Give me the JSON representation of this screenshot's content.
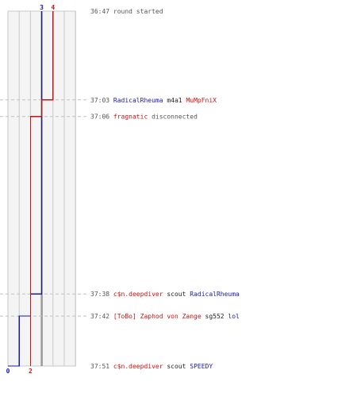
{
  "chart_data": {
    "type": "line",
    "title": "",
    "xlabel": "",
    "ylabel": "",
    "grid": true,
    "x_range": [
      0,
      6
    ],
    "series": [
      {
        "color": "#1a1aaa",
        "start_label": "3",
        "end_label": "0",
        "points": [
          {
            "time": "36:47",
            "score": 3
          },
          {
            "time": "37:38",
            "score": 2
          },
          {
            "time": "37:42",
            "score": 1
          },
          {
            "time": "37:51",
            "score": 0
          }
        ]
      },
      {
        "color": "#cc1111",
        "start_label": "4",
        "end_label": "2",
        "points": [
          {
            "time": "36:47",
            "score": 4
          },
          {
            "time": "37:03",
            "score": 3
          },
          {
            "time": "37:06",
            "score": 2
          },
          {
            "time": "37:51",
            "score": 2
          }
        ]
      }
    ],
    "events": [
      {
        "time": "36:47",
        "segments": [
          {
            "text": "round started",
            "color": "#555555"
          }
        ]
      },
      {
        "time": "37:03",
        "segments": [
          {
            "text": "RadicalRheuma",
            "color": "#1a1aaa"
          },
          {
            "text": "m4a1",
            "color": "#222222"
          },
          {
            "text": "MuMpFniX",
            "color": "#cc1111"
          }
        ]
      },
      {
        "time": "37:06",
        "segments": [
          {
            "text": "fragnatic",
            "color": "#cc1111"
          },
          {
            "text": "disconnected",
            "color": "#555555"
          }
        ]
      },
      {
        "time": "37:38",
        "segments": [
          {
            "text": "c$n.deepdiver",
            "color": "#cc1111"
          },
          {
            "text": "scout",
            "color": "#222222"
          },
          {
            "text": "RadicalRheuma",
            "color": "#1a1aaa"
          }
        ]
      },
      {
        "time": "37:42",
        "segments": [
          {
            "text": "[ToBo] Zaphod von Zange",
            "color": "#cc1111"
          },
          {
            "text": "sg552",
            "color": "#222222"
          },
          {
            "text": "lol",
            "color": "#1a1aaa"
          }
        ]
      },
      {
        "time": "37:51",
        "segments": [
          {
            "text": "c$n.deepdiver",
            "color": "#cc1111"
          },
          {
            "text": "scout",
            "color": "#222222"
          },
          {
            "text": "SPEEDY",
            "color": "#1a1aaa"
          }
        ]
      }
    ]
  }
}
